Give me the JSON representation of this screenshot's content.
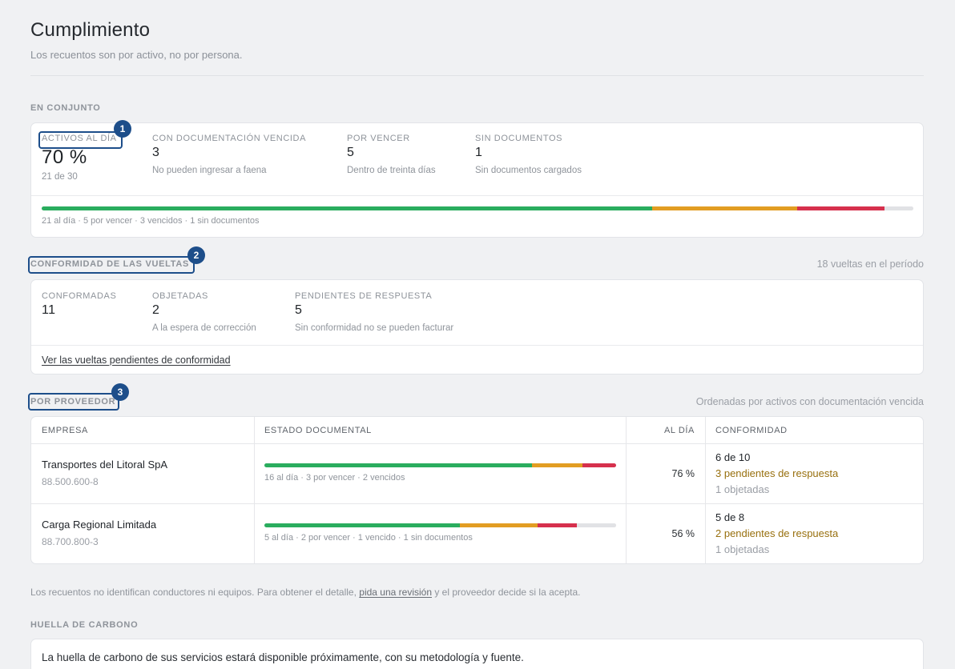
{
  "header": {
    "title": "Cumplimiento",
    "subtitle": "Los recuentos son por activo, no por persona."
  },
  "overall": {
    "section_label": "EN CONJUNTO",
    "stats": [
      {
        "label": "ACTIVOS AL DÍA",
        "value": "70 %",
        "note": "21 de 30"
      },
      {
        "label": "CON DOCUMENTACIÓN VENCIDA",
        "value": "3",
        "note": "No pueden ingresar a faena"
      },
      {
        "label": "POR VENCER",
        "value": "5",
        "note": "Dentro de treinta días"
      },
      {
        "label": "SIN DOCUMENTOS",
        "value": "1",
        "note": "Sin documentos cargados"
      }
    ],
    "status_bar": {
      "al_dia": 21,
      "por_vencer": 5,
      "vencidos": 3,
      "sin_documentos": 1
    },
    "bar_caption": "21 al día · 5 por vencer · 3 vencidos · 1 sin documentos"
  },
  "conformity": {
    "section_label": "CONFORMIDAD DE LAS VUELTAS",
    "period_count": "18 vueltas en el período",
    "stats": [
      {
        "label": "CONFORMADAS",
        "value": "11"
      },
      {
        "label": "OBJETADAS",
        "value": "2",
        "note": "A la espera de corrección"
      },
      {
        "label": "PENDIENTES DE RESPUESTA",
        "value": "5",
        "note": "Sin conformidad no se pueden facturar"
      }
    ],
    "pending_link": "Ver las vueltas pendientes de conformidad"
  },
  "suppliers": {
    "section_label": "POR PROVEEDOR",
    "sort_note": "Ordenadas por activos con documentación vencida",
    "columns": [
      "EMPRESA",
      "ESTADO DOCUMENTAL",
      "AL DÍA",
      "CONFORMIDAD"
    ],
    "rows": [
      {
        "name": "Transportes del Litoral SpA",
        "rut": "88.500.600-8",
        "status_bar": {
          "al_dia": 16,
          "por_vencer": 3,
          "vencidos": 2,
          "sin_documentos": 0
        },
        "bar_caption": "16 al día · 3 por vencer · 2 vencidos",
        "al_dia_pct": "76 %",
        "conformity": "6 de 10",
        "pending": "3 pendientes de respuesta",
        "objected": "1 objetadas"
      },
      {
        "name": "Carga Regional Limitada",
        "rut": "88.700.800-3",
        "status_bar": {
          "al_dia": 5,
          "por_vencer": 2,
          "vencidos": 1,
          "sin_documentos": 1
        },
        "bar_caption": "5 al día · 2 por vencer · 1 vencido · 1 sin documentos",
        "al_dia_pct": "56 %",
        "conformity": "5 de 8",
        "pending": "2 pendientes de respuesta",
        "objected": "1 objetadas"
      }
    ]
  },
  "footnote": {
    "before": "Los recuentos no identifican conductores ni equipos. Para obtener el detalle, ",
    "link": "pida una revisión",
    "after": " y el proveedor decide si la acepta."
  },
  "carbon": {
    "section_label": "HUELLA DE CARBONO",
    "message": "La huella de carbono de sus servicios estará disponible próximamente, con su metodología y fuente."
  },
  "annotations": [
    "1",
    "2",
    "3"
  ],
  "colors": {
    "al_dia": "#2aad5e",
    "por_vencer": "#e29d22",
    "vencidos": "#d6304d",
    "sin_documentos": "#e1e2e5",
    "pending_text": "#98700f",
    "annotation": "#1d4e8a"
  }
}
